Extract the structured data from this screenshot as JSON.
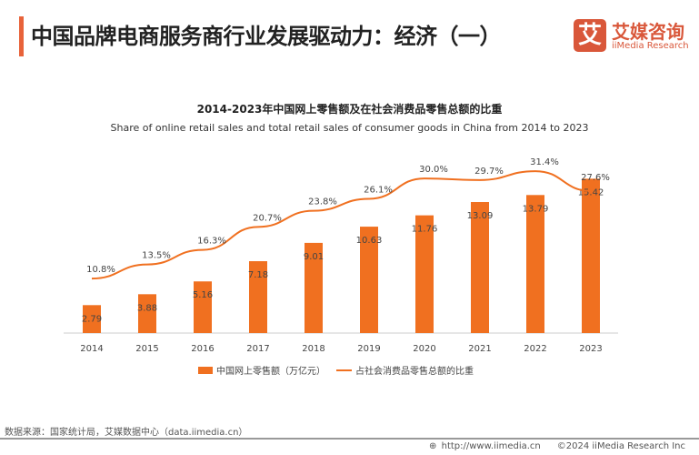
{
  "header": {
    "title": "中国品牌电商服务商行业发展驱动力：经济（一）",
    "logo_glyph": "艾",
    "logo_cn": "艾媒咨询",
    "logo_en": "iiMedia Research"
  },
  "chart_data": {
    "type": "bar+line",
    "title": "2014-2023年中国网上零售额及在社会消费品零售总额的比重",
    "subtitle": "Share of online retail sales and total retail sales of consumer goods in China  from 2014 to 2023",
    "categories": [
      "2014",
      "2015",
      "2016",
      "2017",
      "2018",
      "2019",
      "2020",
      "2021",
      "2022",
      "2023"
    ],
    "series": [
      {
        "name": "中国网上零售额（万亿元）",
        "type": "bar",
        "color": "#f07020",
        "values": [
          2.79,
          3.88,
          5.16,
          7.18,
          9.01,
          10.63,
          11.76,
          13.09,
          13.79,
          15.42
        ]
      },
      {
        "name": "占社会消费品零售总额的比重",
        "type": "line",
        "color": "#f07020",
        "unit": "%",
        "values": [
          10.8,
          13.5,
          16.3,
          20.7,
          23.8,
          26.1,
          30.0,
          29.7,
          31.4,
          27.6
        ]
      }
    ],
    "legend": "bottom",
    "grid": false
  },
  "footer": {
    "source": "数据来源：国家统计局，艾媒数据中心（data.iimedia.cn）",
    "url": "http://www.iimedia.cn",
    "copyright": "©2024  iiMedia Research  Inc"
  }
}
